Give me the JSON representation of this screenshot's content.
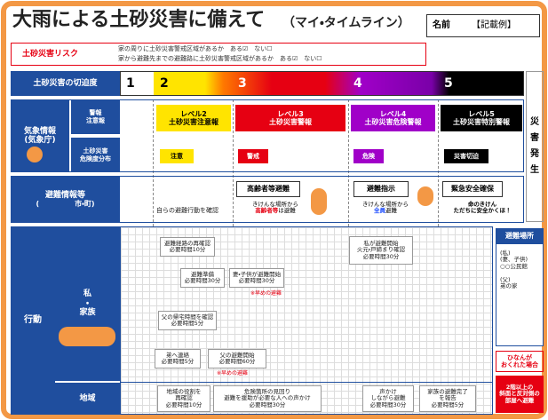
{
  "header": {
    "title": "大雨による土砂災害に備えて",
    "subtitle": "（マイ・タイムライン）",
    "name_label": "名前",
    "name_value": "【記載例】"
  },
  "risk": {
    "label": "土砂災害リスク",
    "questions": [
      {
        "text": "家の周りに土砂災害警戒区域があるか",
        "yes": "ある☑",
        "no": "ない☐"
      },
      {
        "text": "家から避難先までの避難路に土砂災害警戒区域があるか",
        "yes": "ある☑",
        "no": "ない☐"
      }
    ]
  },
  "levels": {
    "label": "土砂災害の切迫度",
    "items": [
      "1",
      "2",
      "3",
      "4",
      "5"
    ],
    "disaster": "災\n害\n発\n生"
  },
  "weather": {
    "label": "気象情報\n(気象庁)",
    "sub_labels": [
      "警報\n注意報",
      "土砂災害\n危険度分布"
    ],
    "warnings": [
      "レベル2\n土砂災害注意報",
      "レベル3\n土砂災害警報",
      "レベル4\n土砂災害危険警報",
      "レベル5\n土砂災害特別警報"
    ],
    "risk_map": [
      "注意",
      "警戒",
      "危険",
      "災害切迫"
    ]
  },
  "evacuation": {
    "label": "避難情報等",
    "label_sub": "(　　　　　市・町)",
    "self_check": "自らの避難行動を確認",
    "items": [
      {
        "title": "高齢者等避難",
        "desc": [
          "きけんな場所から",
          "高齢者等",
          "は避難"
        ]
      },
      {
        "title": "避難指示",
        "desc": [
          "きけんな場所から",
          "全員",
          "避難"
        ]
      },
      {
        "title": "緊急安全確保",
        "desc": [
          "命のきけん\nただちに安全かくほ！"
        ]
      }
    ]
  },
  "action": {
    "label": "行動",
    "family_label": "私\n・\n家族",
    "community_label": "地域",
    "family_tasks": [
      "避難経路の再確認\n必要時間10分",
      "避難準備\n必要時間30分",
      "妻・子供が避難開始\n必要時間30分",
      "父の帰宅時間を確認\n必要時間5分",
      "弟へ連絡\n必要時間5分",
      "父の避難開始\n必要時間60分",
      "私が避難開始\n火元・戸締まり確認\n必要時間30分"
    ],
    "notes": [
      "※早めの避難",
      "※早めの避難"
    ],
    "community_tasks": [
      "地域の役割を\n再確認\n必要時間10分",
      "危険箇所の見回り\n避難を援助が必要な人への声かけ\n必要時間30分",
      "声かけ\nしながら避難\n必要時間30分",
      "家族の避難完了\nを報告\n必要時間5分"
    ]
  },
  "shelter": {
    "title": "避難場所",
    "body": "(私)\n(妻、子供)\n○○公民館\n\n(父)\n弟の家",
    "late_title": "ひなんが\nおくれた場合",
    "late_action": "2階以上の\n斜面と反対側の\n部屋へ避難"
  }
}
